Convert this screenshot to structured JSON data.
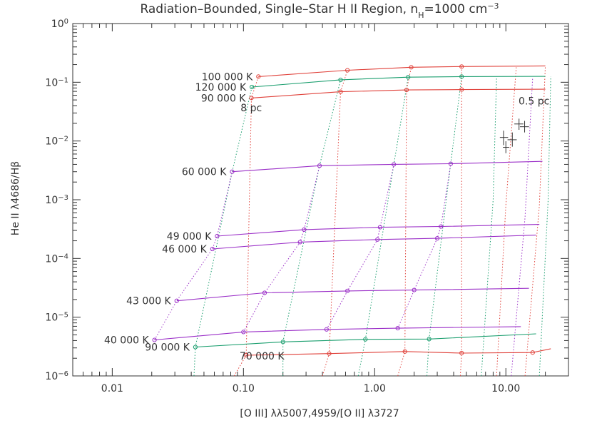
{
  "chart_data": {
    "type": "line",
    "title_parts": {
      "main": "Radiation–Bounded, Single–Star H II Region, n",
      "sub": "H",
      "mid": "=1000 cm",
      "sup": "−3"
    },
    "xlabel": "[O III] λλ5007,4959/[O II] λ3727",
    "ylabel": "He II λ4686/Hβ",
    "xscale": "log",
    "yscale": "log",
    "xlim": [
      0.005,
      30
    ],
    "ylim": [
      1e-06,
      1
    ],
    "xticks": [
      {
        "v": 0.01,
        "label": "0.01"
      },
      {
        "v": 0.1,
        "label": "0.10"
      },
      {
        "v": 1,
        "label": "1.00"
      },
      {
        "v": 10,
        "label": "10.00"
      }
    ],
    "yticks": [
      {
        "v": 1e-06,
        "base": "10",
        "exp": "−6"
      },
      {
        "v": 1e-05,
        "base": "10",
        "exp": "−5"
      },
      {
        "v": 0.0001,
        "base": "10",
        "exp": "−4"
      },
      {
        "v": 0.001,
        "base": "10",
        "exp": "−3"
      },
      {
        "v": 0.01,
        "base": "10",
        "exp": "−2"
      },
      {
        "v": 0.1,
        "base": "10",
        "exp": "−1"
      },
      {
        "v": 1,
        "base": "10",
        "exp": "0"
      }
    ],
    "colors": {
      "red": "#e0413a",
      "green": "#1a9e6e",
      "purple": "#9b30c8",
      "axis": "#333333"
    },
    "series": [
      {
        "name": "100 000 K",
        "color": "red",
        "label_at": "left",
        "points": [
          [
            0.13,
            0.125
          ],
          [
            0.62,
            0.16
          ],
          [
            1.9,
            0.18
          ],
          [
            4.6,
            0.185
          ],
          [
            20,
            0.19
          ]
        ]
      },
      {
        "name": "120 000 K",
        "color": "green",
        "label_at": "left",
        "points": [
          [
            0.116,
            0.083
          ],
          [
            0.55,
            0.11
          ],
          [
            1.8,
            0.122
          ],
          [
            4.6,
            0.125
          ],
          [
            20,
            0.126
          ]
        ]
      },
      {
        "name": "90 000 K",
        "color": "red",
        "label_at": "left",
        "points": [
          [
            0.115,
            0.054
          ],
          [
            0.55,
            0.069
          ],
          [
            1.75,
            0.074
          ],
          [
            4.6,
            0.075
          ],
          [
            20,
            0.076
          ]
        ]
      },
      {
        "name": "60 000 K",
        "color": "purple",
        "label_at": "left",
        "points": [
          [
            0.082,
            0.003
          ],
          [
            0.38,
            0.0038
          ],
          [
            1.4,
            0.004
          ],
          [
            3.8,
            0.0041
          ],
          [
            19,
            0.0045
          ]
        ]
      },
      {
        "name": "49 000 K",
        "color": "purple",
        "label_at": "left",
        "points": [
          [
            0.063,
            0.00024
          ],
          [
            0.29,
            0.00031
          ],
          [
            1.1,
            0.00034
          ],
          [
            3.2,
            0.00035
          ],
          [
            18,
            0.00038
          ]
        ]
      },
      {
        "name": "46 000 K",
        "color": "purple",
        "label_at": "left",
        "points": [
          [
            0.058,
            0.000145
          ],
          [
            0.27,
            0.00019
          ],
          [
            1.05,
            0.00021
          ],
          [
            3.0,
            0.00022
          ],
          [
            17,
            0.00025
          ]
        ]
      },
      {
        "name": "43 000 K",
        "color": "purple",
        "label_at": "left",
        "points": [
          [
            0.031,
            1.9e-05
          ],
          [
            0.145,
            2.6e-05
          ],
          [
            0.62,
            2.8e-05
          ],
          [
            2.0,
            2.9e-05
          ],
          [
            15,
            3.1e-05
          ]
        ]
      },
      {
        "name": "40 000 K",
        "color": "purple",
        "label_at": "left",
        "points": [
          [
            0.021,
            4.1e-06
          ],
          [
            0.1,
            5.6e-06
          ],
          [
            0.43,
            6.2e-06
          ],
          [
            1.5,
            6.5e-06
          ],
          [
            13,
            6.9e-06
          ]
        ]
      },
      {
        "name": "90 000 K",
        "color": "green",
        "label_at": "left",
        "points": [
          [
            0.043,
            3.1e-06
          ],
          [
            0.2,
            3.8e-06
          ],
          [
            0.85,
            4.2e-06
          ],
          [
            2.6,
            4.25e-06
          ],
          [
            17,
            5.2e-06
          ]
        ]
      },
      {
        "name": "70 000 K",
        "color": "red",
        "label_at": "below",
        "points": [
          [
            0.105,
            2.25e-06
          ],
          [
            0.45,
            2.4e-06
          ],
          [
            1.7,
            2.6e-06
          ],
          [
            4.6,
            2.45e-06
          ],
          [
            16,
            2.5e-06
          ],
          [
            22,
            2.9e-06
          ]
        ]
      }
    ],
    "radius_lines": [
      {
        "color": "red",
        "points": [
          [
            0.085,
            1e-06
          ],
          [
            0.105,
            2.25e-06
          ],
          [
            0.115,
            0.054
          ],
          [
            0.13,
            0.125
          ]
        ]
      },
      {
        "color": "green",
        "points": [
          [
            0.042,
            1e-06
          ],
          [
            0.043,
            3.1e-06
          ],
          [
            0.082,
            0.003
          ],
          [
            0.116,
            0.083
          ]
        ]
      },
      {
        "color": "purple",
        "points": [
          [
            0.021,
            4.1e-06
          ],
          [
            0.031,
            1.9e-05
          ],
          [
            0.058,
            0.000145
          ],
          [
            0.063,
            0.00024
          ],
          [
            0.082,
            0.003
          ]
        ]
      },
      {
        "color": "green",
        "points": [
          [
            0.2,
            1e-06
          ],
          [
            0.2,
            3.8e-06
          ],
          [
            0.38,
            0.0038
          ],
          [
            0.55,
            0.11
          ]
        ]
      },
      {
        "color": "red",
        "points": [
          [
            0.4,
            1e-06
          ],
          [
            0.45,
            2.4e-06
          ],
          [
            0.55,
            0.069
          ],
          [
            0.62,
            0.16
          ]
        ]
      },
      {
        "color": "purple",
        "points": [
          [
            0.1,
            5.6e-06
          ],
          [
            0.145,
            2.6e-05
          ],
          [
            0.27,
            0.00019
          ],
          [
            0.29,
            0.00031
          ],
          [
            0.38,
            0.0038
          ]
        ]
      },
      {
        "color": "green",
        "points": [
          [
            0.75,
            1e-06
          ],
          [
            0.85,
            4.2e-06
          ],
          [
            1.4,
            0.004
          ],
          [
            1.8,
            0.122
          ]
        ]
      },
      {
        "color": "red",
        "points": [
          [
            1.5,
            1e-06
          ],
          [
            1.7,
            2.6e-06
          ],
          [
            1.75,
            0.074
          ],
          [
            1.9,
            0.18
          ]
        ]
      },
      {
        "color": "purple",
        "points": [
          [
            0.43,
            6.2e-06
          ],
          [
            0.62,
            2.8e-05
          ],
          [
            1.05,
            0.00021
          ],
          [
            1.1,
            0.00034
          ],
          [
            1.4,
            0.004
          ]
        ]
      },
      {
        "color": "green",
        "points": [
          [
            2.5,
            1e-06
          ],
          [
            2.6,
            4.25e-06
          ],
          [
            3.8,
            0.0041
          ],
          [
            4.6,
            0.125
          ]
        ]
      },
      {
        "color": "red",
        "points": [
          [
            4.5,
            1e-06
          ],
          [
            4.6,
            2.45e-06
          ],
          [
            4.6,
            0.075
          ],
          [
            4.6,
            0.185
          ]
        ]
      },
      {
        "color": "purple",
        "points": [
          [
            1.5,
            6.5e-06
          ],
          [
            2.0,
            2.9e-05
          ],
          [
            3.0,
            0.00022
          ],
          [
            3.2,
            0.00035
          ],
          [
            3.8,
            0.0041
          ]
        ]
      },
      {
        "color": "green",
        "points": [
          [
            6.5,
            1e-06
          ],
          [
            8.0,
            0.001
          ],
          [
            8.5,
            0.12
          ]
        ]
      },
      {
        "color": "red",
        "points": [
          [
            8.5,
            1e-06
          ],
          [
            10,
            0.0008
          ],
          [
            12,
            0.18
          ]
        ]
      },
      {
        "color": "purple",
        "points": [
          [
            11,
            1e-06
          ],
          [
            14,
            0.0005
          ],
          [
            16,
            0.12
          ]
        ]
      },
      {
        "color": "red",
        "points": [
          [
            14,
            1e-06
          ],
          [
            18,
            0.0008
          ],
          [
            20,
            0.19
          ]
        ]
      },
      {
        "color": "green",
        "points": [
          [
            18,
            1e-06
          ],
          [
            21,
            0.001
          ],
          [
            22,
            0.126
          ]
        ]
      }
    ],
    "observations": [
      {
        "x": 9.6,
        "y": 0.0115,
        "xerr": [
          9.0,
          10.4
        ],
        "yerr": [
          0.0085,
          0.015
        ]
      },
      {
        "x": 10.0,
        "y": 0.0078,
        "xerr": [
          9.5,
          10.6
        ],
        "yerr": [
          0.0062,
          0.0099
        ]
      },
      {
        "x": 11.2,
        "y": 0.0105,
        "xerr": [
          10.3,
          12.1
        ],
        "yerr": [
          0.008,
          0.014
        ]
      },
      {
        "x": 12.6,
        "y": 0.0195,
        "xerr": [
          11.6,
          13.6
        ],
        "yerr": [
          0.0155,
          0.024
        ]
      },
      {
        "x": 13.9,
        "y": 0.0175,
        "xerr": [
          12.8,
          15.0
        ],
        "yerr": [
          0.014,
          0.022
        ]
      }
    ],
    "annotations": [
      {
        "text": "8 pc",
        "x": 0.095,
        "y": 0.032
      },
      {
        "text": "0.5 pc",
        "x": 12.5,
        "y": 0.042
      }
    ]
  }
}
